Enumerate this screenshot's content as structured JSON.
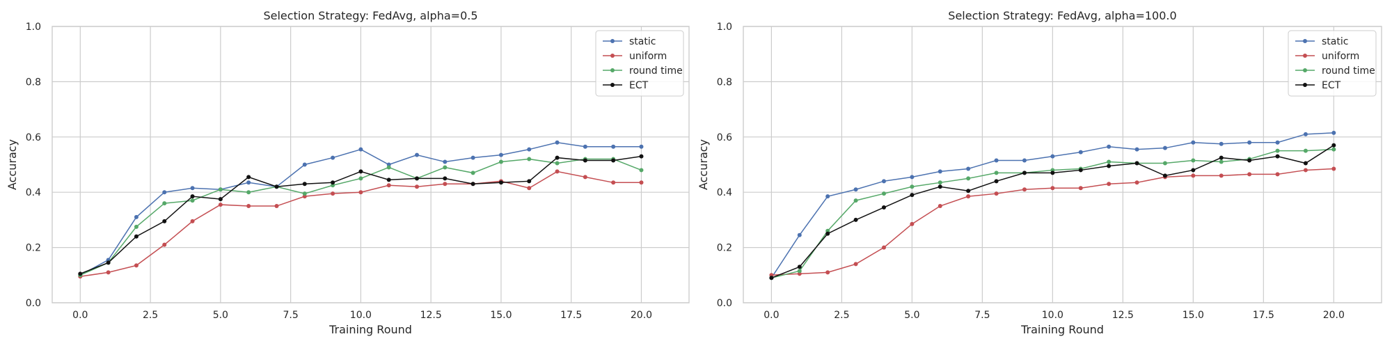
{
  "chart_data": [
    {
      "type": "line",
      "title": "Selection Strategy: FedAvg, alpha=0.5",
      "xlabel": "Training Round",
      "ylabel": "Accuracy",
      "xlim": [
        -1.0,
        21.7
      ],
      "ylim": [
        0.0,
        1.0
      ],
      "xticks": [
        0.0,
        2.5,
        5.0,
        7.5,
        10.0,
        12.5,
        15.0,
        17.5,
        20.0
      ],
      "xtick_labels": [
        "0.0",
        "2.5",
        "5.0",
        "7.5",
        "10.0",
        "12.5",
        "15.0",
        "17.5",
        "20.0"
      ],
      "yticks": [
        0.0,
        0.2,
        0.4,
        0.6,
        0.8,
        1.0
      ],
      "ytick_labels": [
        "0.0",
        "0.2",
        "0.4",
        "0.6",
        "0.8",
        "1.0"
      ],
      "grid": true,
      "legend_position": "top-right",
      "x": [
        0,
        1,
        2,
        3,
        4,
        5,
        6,
        7,
        8,
        9,
        10,
        11,
        12,
        13,
        14,
        15,
        16,
        17,
        18,
        19,
        20
      ],
      "series": [
        {
          "name": "static",
          "color": "#4c72b0",
          "values": [
            0.1,
            0.155,
            0.31,
            0.4,
            0.415,
            0.41,
            0.435,
            0.42,
            0.5,
            0.525,
            0.555,
            0.5,
            0.535,
            0.51,
            0.525,
            0.535,
            0.555,
            0.58,
            0.565,
            0.565,
            0.565
          ]
        },
        {
          "name": "uniform",
          "color": "#c44e52",
          "values": [
            0.095,
            0.11,
            0.135,
            0.21,
            0.295,
            0.355,
            0.35,
            0.35,
            0.385,
            0.395,
            0.4,
            0.425,
            0.42,
            0.43,
            0.43,
            0.44,
            0.415,
            0.475,
            0.455,
            0.435,
            0.435
          ]
        },
        {
          "name": "round time",
          "color": "#55a868",
          "values": [
            0.1,
            0.145,
            0.275,
            0.36,
            0.37,
            0.41,
            0.4,
            0.42,
            0.395,
            0.425,
            0.45,
            0.49,
            0.45,
            0.49,
            0.47,
            0.51,
            0.52,
            0.505,
            0.52,
            0.52,
            0.48
          ]
        },
        {
          "name": "ECT",
          "color": "#111111",
          "values": [
            0.105,
            0.145,
            0.24,
            0.295,
            0.385,
            0.375,
            0.455,
            0.42,
            0.43,
            0.435,
            0.475,
            0.445,
            0.45,
            0.45,
            0.43,
            0.435,
            0.44,
            0.525,
            0.515,
            0.515,
            0.53
          ]
        }
      ]
    },
    {
      "type": "line",
      "title": "Selection Strategy: FedAvg, alpha=100.0",
      "xlabel": "Training Round",
      "ylabel": "Accuracy",
      "xlim": [
        -1.0,
        21.7
      ],
      "ylim": [
        0.0,
        1.0
      ],
      "xticks": [
        0.0,
        2.5,
        5.0,
        7.5,
        10.0,
        12.5,
        15.0,
        17.5,
        20.0
      ],
      "xtick_labels": [
        "0.0",
        "2.5",
        "5.0",
        "7.5",
        "10.0",
        "12.5",
        "15.0",
        "17.5",
        "20.0"
      ],
      "yticks": [
        0.0,
        0.2,
        0.4,
        0.6,
        0.8,
        1.0
      ],
      "ytick_labels": [
        "0.0",
        "0.2",
        "0.4",
        "0.6",
        "0.8",
        "1.0"
      ],
      "grid": true,
      "legend_position": "top-right",
      "x": [
        0,
        1,
        2,
        3,
        4,
        5,
        6,
        7,
        8,
        9,
        10,
        11,
        12,
        13,
        14,
        15,
        16,
        17,
        18,
        19,
        20
      ],
      "series": [
        {
          "name": "static",
          "color": "#4c72b0",
          "values": [
            0.09,
            0.245,
            0.385,
            0.41,
            0.44,
            0.455,
            0.475,
            0.485,
            0.515,
            0.515,
            0.53,
            0.545,
            0.565,
            0.555,
            0.56,
            0.58,
            0.575,
            0.58,
            0.58,
            0.61,
            0.615
          ]
        },
        {
          "name": "uniform",
          "color": "#c44e52",
          "values": [
            0.1,
            0.105,
            0.11,
            0.14,
            0.2,
            0.285,
            0.35,
            0.385,
            0.395,
            0.41,
            0.415,
            0.415,
            0.43,
            0.435,
            0.455,
            0.46,
            0.46,
            0.465,
            0.465,
            0.48,
            0.485
          ]
        },
        {
          "name": "round time",
          "color": "#55a868",
          "values": [
            0.09,
            0.115,
            0.26,
            0.37,
            0.395,
            0.42,
            0.435,
            0.45,
            0.47,
            0.47,
            0.48,
            0.485,
            0.51,
            0.505,
            0.505,
            0.515,
            0.51,
            0.52,
            0.55,
            0.55,
            0.555
          ]
        },
        {
          "name": "ECT",
          "color": "#111111",
          "values": [
            0.09,
            0.13,
            0.25,
            0.3,
            0.345,
            0.39,
            0.42,
            0.405,
            0.44,
            0.47,
            0.47,
            0.48,
            0.495,
            0.505,
            0.46,
            0.48,
            0.525,
            0.515,
            0.53,
            0.505,
            0.57
          ]
        }
      ]
    }
  ]
}
